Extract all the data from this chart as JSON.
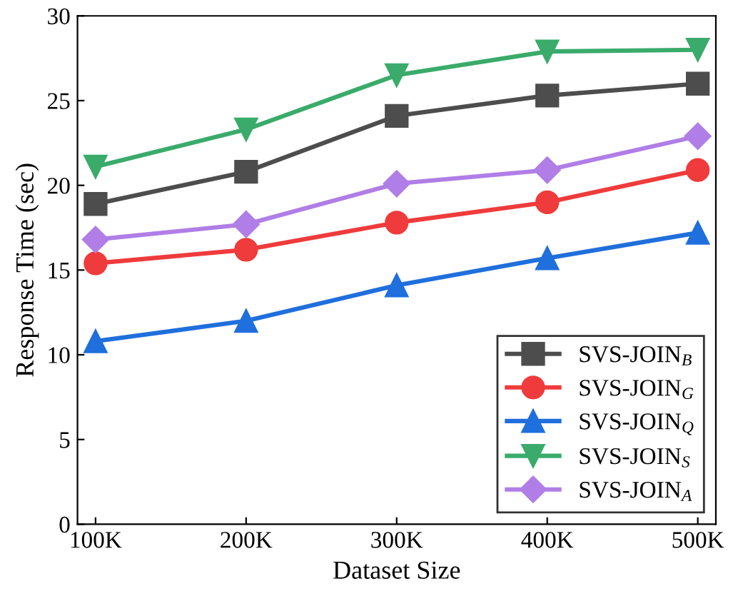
{
  "chart_data": {
    "type": "line",
    "xlabel": "Dataset Size",
    "ylabel": "Response Time (sec)",
    "categories": [
      "100K",
      "200K",
      "300K",
      "400K",
      "500K"
    ],
    "ylim": [
      0,
      30
    ],
    "yticks": [
      0,
      5,
      10,
      15,
      20,
      25,
      30
    ],
    "grid": false,
    "legend": "bottom right",
    "line_style": "solid",
    "series": [
      {
        "name": "SVS-JOIN$_{B}$",
        "color": "#4d4d4d",
        "marker": "square",
        "values": [
          18.9,
          20.8,
          24.1,
          25.3,
          26.0
        ]
      },
      {
        "name": "SVS-JOIN$_{G}$",
        "color": "#ef3b3b",
        "marker": "circle",
        "values": [
          15.4,
          16.2,
          17.8,
          19.0,
          20.9
        ]
      },
      {
        "name": "SVS-JOIN$_{Q}$",
        "color": "#1f6fdc",
        "marker": "triangle",
        "values": [
          10.8,
          12.0,
          14.1,
          15.7,
          17.2
        ]
      },
      {
        "name": "SVS-JOIN$_{S}$",
        "color": "#3aab6a",
        "marker": "triangle_down",
        "values": [
          21.1,
          23.3,
          26.5,
          27.9,
          28.0
        ]
      },
      {
        "name": "SVS-JOIN$_{A}$",
        "color": "#b07ee6",
        "marker": "diamond",
        "values": [
          16.8,
          17.7,
          20.1,
          20.9,
          22.9
        ]
      }
    ]
  }
}
